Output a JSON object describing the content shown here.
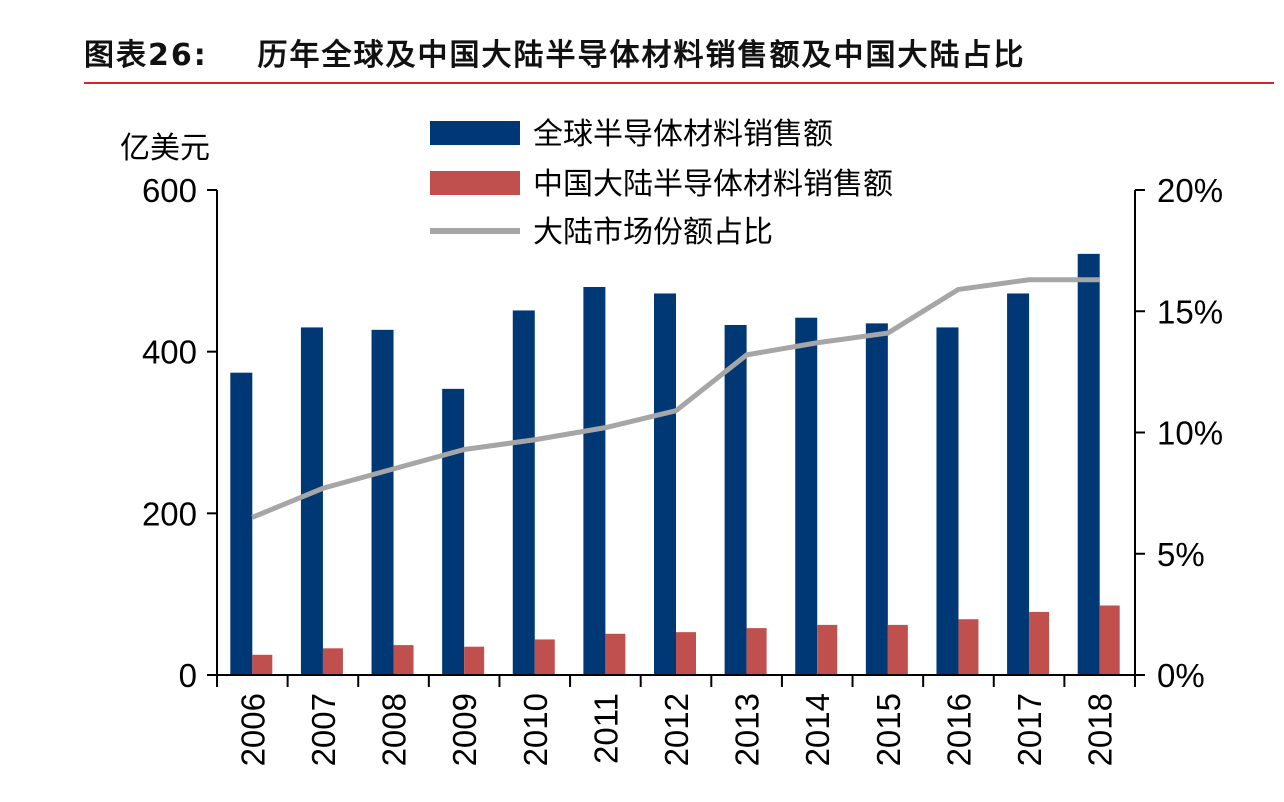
{
  "title": "图表26:    历年全球及中国大陆半导体材料销售额及中国大陆占比",
  "chart_data": {
    "type": "bar",
    "title": "图表26:    历年全球及中国大陆半导体材料销售额及中国大陆占比",
    "ylabel": "亿美元",
    "ylim": [
      0,
      600
    ],
    "yticks": [
      "0",
      "200",
      "400",
      "600"
    ],
    "y2lim": [
      0,
      20
    ],
    "y2ticks": [
      "0%",
      "5%",
      "10%",
      "15%",
      "20%"
    ],
    "categories": [
      "2006",
      "2007",
      "2008",
      "2009",
      "2010",
      "2011",
      "2012",
      "2013",
      "2014",
      "2015",
      "2016",
      "2017",
      "2018"
    ],
    "grid": false,
    "legend_placement": "top-center",
    "series": [
      {
        "name": "全球半导体材料销售额",
        "type": "bar",
        "axis": "left",
        "color": "#003876",
        "values": [
          374,
          430,
          427,
          354,
          451,
          480,
          472,
          433,
          442,
          435,
          430,
          472,
          521
        ]
      },
      {
        "name": "中国大陆半导体材料销售额",
        "type": "bar",
        "axis": "left",
        "color": "#C0504D",
        "values": [
          25,
          33,
          37,
          35,
          44,
          51,
          53,
          58,
          62,
          62,
          69,
          78,
          86
        ]
      },
      {
        "name": "大陆市场份额占比",
        "type": "line",
        "axis": "right",
        "unit": "%",
        "color": "#A6A6A6",
        "values": [
          6.5,
          7.7,
          8.5,
          9.3,
          9.7,
          10.2,
          10.9,
          13.2,
          13.7,
          14.1,
          15.9,
          16.3,
          16.3
        ]
      }
    ]
  }
}
